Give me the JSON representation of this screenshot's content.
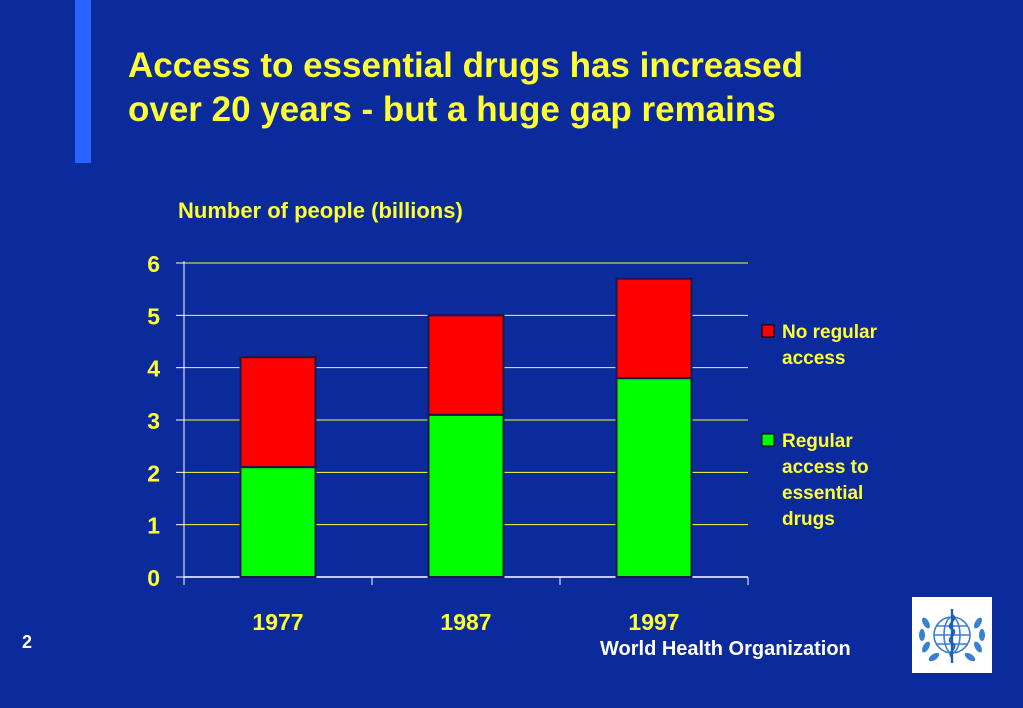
{
  "slide": {
    "title_line1": "Access to essential drugs has increased",
    "title_line2": "over 20 years - but a huge gap remains",
    "slide_number": "2",
    "organization": "World Health Organization",
    "logo_icon": "who-emblem-icon"
  },
  "colors": {
    "background": "#0b2a9c",
    "title": "#ffff33",
    "no_access": "#ff0000",
    "access": "#00ff00"
  },
  "chart_data": {
    "type": "bar",
    "stacked": true,
    "title": "Number of people (billions)",
    "categories": [
      "1977",
      "1987",
      "1997"
    ],
    "series": [
      {
        "name": "Regular access to essential drugs",
        "values": [
          2.1,
          3.1,
          3.8
        ],
        "color": "#00ff00"
      },
      {
        "name": "No regular access",
        "values": [
          2.1,
          1.9,
          1.9
        ],
        "color": "#ff0000"
      }
    ],
    "yticks": [
      "0",
      "1",
      "2",
      "3",
      "4",
      "5",
      "6"
    ],
    "ylim": [
      0,
      6
    ],
    "grid": true,
    "legend": "right",
    "legend_entries": [
      {
        "lines": [
          "No regular",
          "access"
        ],
        "color": "#ff0000"
      },
      {
        "lines": [
          "Regular",
          "access to",
          "essential",
          "drugs"
        ],
        "color": "#00ff00"
      }
    ]
  }
}
